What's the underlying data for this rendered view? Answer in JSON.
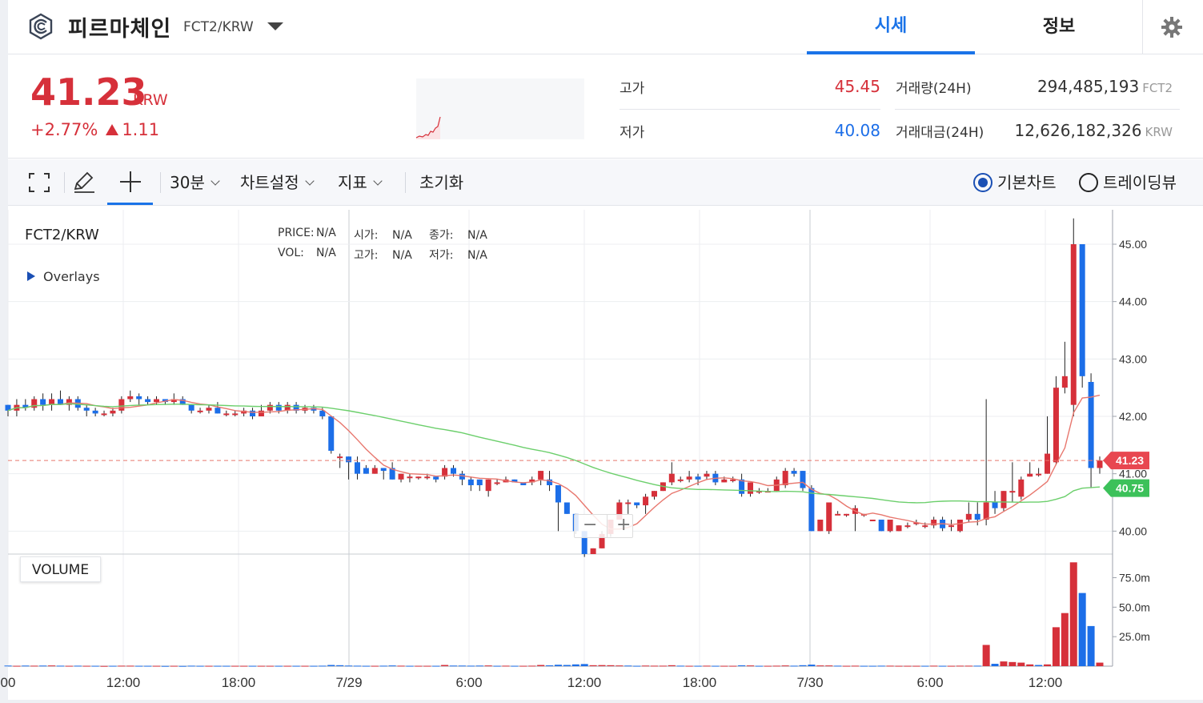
{
  "header": {
    "coin_name": "피르마체인",
    "pair": "FCT2/KRW",
    "tabs": [
      {
        "label": "시세",
        "active": true
      },
      {
        "label": "정보",
        "active": false
      }
    ],
    "settings_icon": "gear-icon"
  },
  "ticker": {
    "price": "41.23",
    "unit": "KRW",
    "change_pct": "+2.77%",
    "change_abs": "1.11",
    "high_label": "고가",
    "high": "45.45",
    "low_label": "저가",
    "low": "40.08",
    "volume_label": "거래량(24H)",
    "volume": "294,485,193",
    "volume_unit": "FCT2",
    "amount_label": "거래대금(24H)",
    "amount": "12,626,182,326",
    "amount_unit": "KRW"
  },
  "toolbar": {
    "interval": "30분",
    "chart_settings": "차트설정",
    "indicators": "지표",
    "reset": "초기화",
    "basic_chart": "기본차트",
    "tradingview": "트레이딩뷰",
    "basic_selected": true
  },
  "chart": {
    "pair": "FCT2/KRW",
    "overlays": "Overlays",
    "price_label": "PRICE:",
    "vol_label": "VOL:",
    "open_label": "시가:",
    "high_label": "고가:",
    "close_label": "종가:",
    "low_label": "저가:",
    "na": "N/A",
    "volume_panel": "VOLUME",
    "current_price_tag": "41.23",
    "ma_tag": "40.75",
    "zoom_out": "−",
    "zoom_in": "+"
  },
  "chart_data": {
    "type": "candlestick",
    "price_axis": {
      "ticks": [
        "45.00",
        "44.00",
        "43.00",
        "42.00",
        "41.00",
        "40.00"
      ],
      "ylim": [
        39.6,
        45.6
      ]
    },
    "volume_axis": {
      "ticks": [
        "75.0m",
        "50.0m",
        "25.0m"
      ],
      "ylim": [
        0,
        95
      ]
    },
    "time_ticks": [
      "00",
      "12:00",
      "18:00",
      "7/29",
      "6:00",
      "12:00",
      "18:00",
      "7/30",
      "6:00",
      "12:00"
    ],
    "candles": [
      [
        42.2,
        42.1,
        42.2,
        42.0
      ],
      [
        42.1,
        42.2,
        42.3,
        42.0
      ],
      [
        42.2,
        42.15,
        42.3,
        42.1
      ],
      [
        42.15,
        42.3,
        42.35,
        42.1
      ],
      [
        42.3,
        42.2,
        42.4,
        42.1
      ],
      [
        42.2,
        42.3,
        42.4,
        42.1
      ],
      [
        42.3,
        42.2,
        42.45,
        42.2
      ],
      [
        42.2,
        42.3,
        42.35,
        42.1
      ],
      [
        42.3,
        42.15,
        42.35,
        42.1
      ],
      [
        42.15,
        42.1,
        42.2,
        42.0
      ],
      [
        42.1,
        42.05,
        42.15,
        42.0
      ],
      [
        42.05,
        42.05,
        42.1,
        42.0
      ],
      [
        42.05,
        42.1,
        42.15,
        42.0
      ],
      [
        42.1,
        42.3,
        42.35,
        42.05
      ],
      [
        42.3,
        42.35,
        42.45,
        42.25
      ],
      [
        42.35,
        42.3,
        42.4,
        42.2
      ],
      [
        42.3,
        42.25,
        42.35,
        42.2
      ],
      [
        42.25,
        42.3,
        42.35,
        42.2
      ],
      [
        42.3,
        42.25,
        42.3,
        42.2
      ],
      [
        42.25,
        42.3,
        42.4,
        42.2
      ],
      [
        42.3,
        42.2,
        42.35,
        42.2
      ],
      [
        42.2,
        42.1,
        42.2,
        42.05
      ],
      [
        42.1,
        42.1,
        42.15,
        42.05
      ],
      [
        42.1,
        42.15,
        42.2,
        42.05
      ],
      [
        42.15,
        42.05,
        42.25,
        42.05
      ],
      [
        42.05,
        42.05,
        42.1,
        42.0
      ],
      [
        42.05,
        42.05,
        42.1,
        42.0
      ],
      [
        42.05,
        42.1,
        42.15,
        42.0
      ],
      [
        42.1,
        42.0,
        42.15,
        41.95
      ],
      [
        42.0,
        42.1,
        42.2,
        42.0
      ],
      [
        42.1,
        42.2,
        42.25,
        42.05
      ],
      [
        42.2,
        42.1,
        42.25,
        42.05
      ],
      [
        42.1,
        42.2,
        42.25,
        42.05
      ],
      [
        42.2,
        42.1,
        42.25,
        42.05
      ],
      [
        42.1,
        42.15,
        42.2,
        42.05
      ],
      [
        42.15,
        42.1,
        42.2,
        42.05
      ],
      [
        42.1,
        42.0,
        42.15,
        41.95
      ],
      [
        42.0,
        41.4,
        42.0,
        41.35
      ],
      [
        41.3,
        41.3,
        41.35,
        41.1
      ],
      [
        41.3,
        41.2,
        41.3,
        40.9
      ],
      [
        41.2,
        41.0,
        41.3,
        40.9
      ],
      [
        41.1,
        41.0,
        41.15,
        41.0
      ],
      [
        41.0,
        41.1,
        41.15,
        41.0
      ],
      [
        41.1,
        41.05,
        41.1,
        40.9
      ],
      [
        41.1,
        40.9,
        41.2,
        40.9
      ],
      [
        40.9,
        41.0,
        41.0,
        40.85
      ],
      [
        40.95,
        40.95,
        41.0,
        40.85
      ],
      [
        40.95,
        40.95,
        40.95,
        40.9
      ],
      [
        40.95,
        40.95,
        41.0,
        40.9
      ],
      [
        40.95,
        40.9,
        40.95,
        40.85
      ],
      [
        40.95,
        41.1,
        41.15,
        40.9
      ],
      [
        41.1,
        41.0,
        41.15,
        40.95
      ],
      [
        41.0,
        40.9,
        41.05,
        40.8
      ],
      [
        40.9,
        40.8,
        40.95,
        40.7
      ],
      [
        40.9,
        40.8,
        40.9,
        40.7
      ],
      [
        40.7,
        40.9,
        40.9,
        40.6
      ],
      [
        40.85,
        40.85,
        40.9,
        40.8
      ],
      [
        40.85,
        40.9,
        40.95,
        40.85
      ],
      [
        40.9,
        40.85,
        40.9,
        40.85
      ],
      [
        40.85,
        40.8,
        40.85,
        40.8
      ],
      [
        40.85,
        40.9,
        40.95,
        40.8
      ],
      [
        40.9,
        41.05,
        41.05,
        40.8
      ],
      [
        40.9,
        40.8,
        41.05,
        40.7
      ],
      [
        40.8,
        40.5,
        40.8,
        40.0
      ],
      [
        40.5,
        40.3,
        40.5,
        40.3
      ],
      [
        40.3,
        40.0,
        40.3,
        39.95
      ],
      [
        40.0,
        39.6,
        40.0,
        39.55
      ],
      [
        39.6,
        39.7,
        39.7,
        39.6
      ],
      [
        39.7,
        39.95,
        40.0,
        39.7
      ],
      [
        39.95,
        40.2,
        40.2,
        39.9
      ],
      [
        40.2,
        40.5,
        40.55,
        40.2
      ],
      [
        40.5,
        40.5,
        40.55,
        40.3
      ],
      [
        40.5,
        40.45,
        40.5,
        40.4
      ],
      [
        40.45,
        40.6,
        40.65,
        40.3
      ],
      [
        40.6,
        40.7,
        40.7,
        40.55
      ],
      [
        40.7,
        40.85,
        40.85,
        40.7
      ],
      [
        40.85,
        41.0,
        41.2,
        40.8
      ],
      [
        40.9,
        40.9,
        40.95,
        40.85
      ],
      [
        40.9,
        40.95,
        41.05,
        40.85
      ],
      [
        40.95,
        40.9,
        41.0,
        40.8
      ],
      [
        40.95,
        41.0,
        41.05,
        40.9
      ],
      [
        41.0,
        40.85,
        41.05,
        40.8
      ],
      [
        40.85,
        40.9,
        40.95,
        40.85
      ],
      [
        40.9,
        40.9,
        40.95,
        40.85
      ],
      [
        40.9,
        40.65,
        41.0,
        40.6
      ],
      [
        40.65,
        40.85,
        40.85,
        40.6
      ],
      [
        40.7,
        40.7,
        40.75,
        40.65
      ],
      [
        40.7,
        40.7,
        40.75,
        40.7
      ],
      [
        40.7,
        40.9,
        40.95,
        40.7
      ],
      [
        40.8,
        41.05,
        41.1,
        40.75
      ],
      [
        41.05,
        41.0,
        41.1,
        40.95
      ],
      [
        41.05,
        40.75,
        41.05,
        40.7
      ],
      [
        40.75,
        40.0,
        40.8,
        40.0
      ],
      [
        40.0,
        40.2,
        40.2,
        40.0
      ],
      [
        40.0,
        40.5,
        40.5,
        39.95
      ],
      [
        40.3,
        40.3,
        40.35,
        40.3
      ],
      [
        40.3,
        40.3,
        40.3,
        40.25
      ],
      [
        40.3,
        40.4,
        40.45,
        40.0
      ],
      [
        40.3,
        40.3,
        40.3,
        40.25
      ],
      [
        40.2,
        40.2,
        40.2,
        40.2
      ],
      [
        40.2,
        40.0,
        40.2,
        40.0
      ],
      [
        40.0,
        40.2,
        40.2,
        39.98
      ],
      [
        40.0,
        40.1,
        40.1,
        40.0
      ],
      [
        40.1,
        40.1,
        40.15,
        40.05
      ],
      [
        40.15,
        40.15,
        40.2,
        40.1
      ],
      [
        40.1,
        40.1,
        40.15,
        40.05
      ],
      [
        40.1,
        40.2,
        40.25,
        40.05
      ],
      [
        40.2,
        40.05,
        40.25,
        40.0
      ],
      [
        40.1,
        40.1,
        40.2,
        40.0
      ],
      [
        40.0,
        40.2,
        40.2,
        39.98
      ],
      [
        40.2,
        40.3,
        40.5,
        40.15
      ],
      [
        40.3,
        40.2,
        40.5,
        40.1
      ],
      [
        40.2,
        40.5,
        42.3,
        40.1
      ],
      [
        40.5,
        40.4,
        40.7,
        40.3
      ],
      [
        40.4,
        40.7,
        40.7,
        40.35
      ],
      [
        40.7,
        40.7,
        41.2,
        40.5
      ],
      [
        40.6,
        40.9,
        40.95,
        40.55
      ],
      [
        40.95,
        41.0,
        41.2,
        40.95
      ],
      [
        41.0,
        41.0,
        41.1,
        40.95
      ],
      [
        41.0,
        41.35,
        42.0,
        41.0
      ],
      [
        41.2,
        42.5,
        42.7,
        41.15
      ],
      [
        42.5,
        42.7,
        43.3,
        42.4
      ],
      [
        42.2,
        45.0,
        45.45,
        42.0
      ],
      [
        45.0,
        42.7,
        45.0,
        42.5
      ],
      [
        42.6,
        41.1,
        42.75,
        40.75
      ],
      [
        41.1,
        41.23,
        41.3,
        41.0
      ]
    ],
    "ma_short_color": "#e8776e",
    "ma_long_color": "#6ccf6c",
    "up_color": "#d6303a",
    "down_color": "#1c6ee8",
    "volume": [
      [
        0.5,
        "d"
      ],
      [
        0.3,
        "u"
      ],
      [
        0.5,
        "d"
      ],
      [
        0.4,
        "u"
      ],
      [
        0.5,
        "d"
      ],
      [
        0.6,
        "u"
      ],
      [
        0.4,
        "d"
      ],
      [
        0.3,
        "u"
      ],
      [
        0.4,
        "d"
      ],
      [
        0.3,
        "u"
      ],
      [
        0.3,
        "d"
      ],
      [
        0.2,
        "u"
      ],
      [
        0.3,
        "d"
      ],
      [
        0.4,
        "u"
      ],
      [
        0.4,
        "u"
      ],
      [
        0.3,
        "d"
      ],
      [
        0.3,
        "d"
      ],
      [
        0.3,
        "u"
      ],
      [
        0.2,
        "d"
      ],
      [
        0.3,
        "u"
      ],
      [
        0.2,
        "d"
      ],
      [
        0.4,
        "d"
      ],
      [
        0.3,
        "d"
      ],
      [
        0.3,
        "u"
      ],
      [
        0.3,
        "d"
      ],
      [
        0.3,
        "d"
      ],
      [
        0.3,
        "u"
      ],
      [
        0.3,
        "u"
      ],
      [
        0.3,
        "d"
      ],
      [
        0.3,
        "u"
      ],
      [
        0.3,
        "u"
      ],
      [
        0.3,
        "d"
      ],
      [
        0.3,
        "u"
      ],
      [
        0.3,
        "d"
      ],
      [
        0.3,
        "u"
      ],
      [
        0.3,
        "d"
      ],
      [
        0.4,
        "d"
      ],
      [
        1.0,
        "d"
      ],
      [
        0.8,
        "d"
      ],
      [
        0.5,
        "d"
      ],
      [
        0.4,
        "d"
      ],
      [
        0.3,
        "d"
      ],
      [
        0.3,
        "u"
      ],
      [
        0.4,
        "d"
      ],
      [
        0.6,
        "d"
      ],
      [
        0.4,
        "u"
      ],
      [
        0.3,
        "d"
      ],
      [
        0.3,
        "u"
      ],
      [
        0.3,
        "u"
      ],
      [
        0.3,
        "d"
      ],
      [
        1.0,
        "u"
      ],
      [
        0.5,
        "d"
      ],
      [
        0.5,
        "d"
      ],
      [
        0.4,
        "d"
      ],
      [
        0.5,
        "d"
      ],
      [
        0.6,
        "u"
      ],
      [
        0.3,
        "d"
      ],
      [
        0.4,
        "u"
      ],
      [
        0.3,
        "d"
      ],
      [
        0.3,
        "u"
      ],
      [
        0.4,
        "u"
      ],
      [
        1.0,
        "u"
      ],
      [
        0.7,
        "d"
      ],
      [
        1.2,
        "d"
      ],
      [
        1.0,
        "d"
      ],
      [
        1.5,
        "d"
      ],
      [
        1.8,
        "d"
      ],
      [
        0.8,
        "u"
      ],
      [
        0.9,
        "u"
      ],
      [
        0.8,
        "u"
      ],
      [
        0.6,
        "u"
      ],
      [
        0.5,
        "d"
      ],
      [
        0.3,
        "d"
      ],
      [
        0.5,
        "u"
      ],
      [
        0.4,
        "u"
      ],
      [
        0.4,
        "u"
      ],
      [
        0.8,
        "u"
      ],
      [
        0.4,
        "d"
      ],
      [
        0.3,
        "u"
      ],
      [
        0.3,
        "d"
      ],
      [
        0.4,
        "u"
      ],
      [
        0.3,
        "d"
      ],
      [
        0.3,
        "u"
      ],
      [
        0.3,
        "u"
      ],
      [
        0.7,
        "d"
      ],
      [
        0.6,
        "u"
      ],
      [
        0.3,
        "d"
      ],
      [
        0.3,
        "u"
      ],
      [
        0.4,
        "u"
      ],
      [
        0.6,
        "u"
      ],
      [
        0.4,
        "d"
      ],
      [
        0.8,
        "d"
      ],
      [
        1.3,
        "d"
      ],
      [
        0.6,
        "u"
      ],
      [
        0.6,
        "u"
      ],
      [
        0.4,
        "d"
      ],
      [
        0.3,
        "u"
      ],
      [
        0.4,
        "u"
      ],
      [
        0.3,
        "d"
      ],
      [
        0.3,
        "d"
      ],
      [
        0.4,
        "d"
      ],
      [
        0.4,
        "u"
      ],
      [
        0.3,
        "u"
      ],
      [
        0.3,
        "u"
      ],
      [
        0.3,
        "u"
      ],
      [
        0.3,
        "d"
      ],
      [
        0.4,
        "u"
      ],
      [
        0.3,
        "d"
      ],
      [
        0.3,
        "u"
      ],
      [
        0.4,
        "u"
      ],
      [
        0.4,
        "u"
      ],
      [
        0.4,
        "d"
      ],
      [
        18.0,
        "u"
      ],
      [
        2.0,
        "d"
      ],
      [
        4.0,
        "u"
      ],
      [
        3.5,
        "u"
      ],
      [
        3.0,
        "u"
      ],
      [
        1.5,
        "u"
      ],
      [
        1.0,
        "d"
      ],
      [
        1.5,
        "u"
      ],
      [
        33.0,
        "u"
      ],
      [
        45.0,
        "u"
      ],
      [
        88.0,
        "u"
      ],
      [
        62.0,
        "d"
      ],
      [
        34.0,
        "d"
      ],
      [
        3.0,
        "u"
      ]
    ]
  }
}
